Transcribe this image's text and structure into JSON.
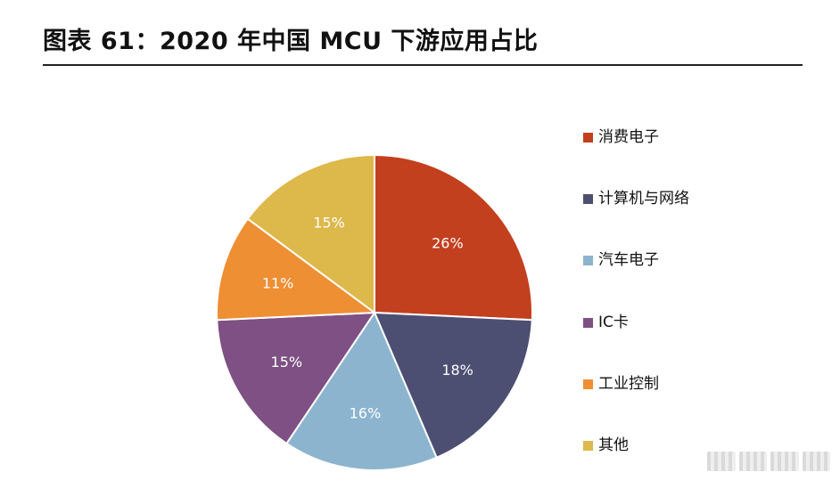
{
  "title": "图表 61：2020 年中国 MCU 下游应用占比",
  "chart_data": {
    "type": "pie",
    "title": "图表 61：2020 年中国 MCU 下游应用占比",
    "start_angle": "12 o'clock",
    "direction": "clockwise",
    "legend_position": "right",
    "slices": [
      {
        "name": "消费电子",
        "value": 26,
        "label": "26%",
        "color": "#C3401F"
      },
      {
        "name": "计算机与网络",
        "value": 18,
        "label": "18%",
        "color": "#4D4F72"
      },
      {
        "name": "汽车电子",
        "value": 16,
        "label": "16%",
        "color": "#8DB4CE"
      },
      {
        "name": "IC卡",
        "value": 15,
        "label": "15%",
        "color": "#7E5083"
      },
      {
        "name": "工业控制",
        "value": 11,
        "label": "11%",
        "color": "#EE8F34"
      },
      {
        "name": "其他",
        "value": 15,
        "label": "15%",
        "color": "#DDB84B"
      }
    ]
  }
}
